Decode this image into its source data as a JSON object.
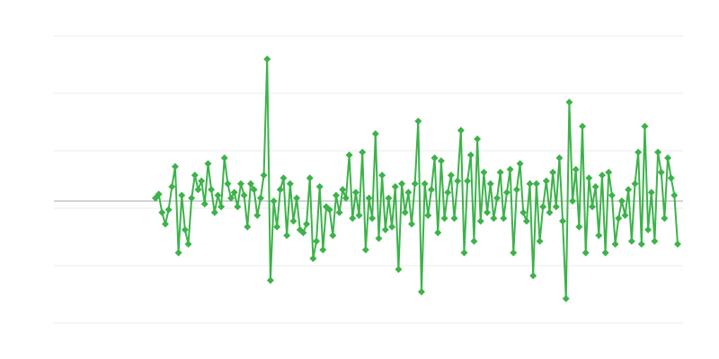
{
  "chart_data": {
    "type": "line",
    "title": "",
    "xlabel": "",
    "ylabel": "",
    "marker": "diamond",
    "grid": true,
    "zero_line": true,
    "ylim": [
      -2.125,
      2.875
    ],
    "gridlines": [
      2.875,
      1.875,
      0.875,
      -0.125,
      -1.125,
      -2.125
    ],
    "colors": {
      "series": "#3cb34a",
      "grid": "#ebebeb",
      "zero_line": "#aaaaaa"
    },
    "series": [
      {
        "values": [
          0.05,
          0.12,
          -0.2,
          -0.4,
          -0.15,
          0.25,
          0.6,
          -0.9,
          0.1,
          -0.5,
          -0.75,
          0.05,
          0.45,
          0.2,
          0.35,
          -0.05,
          0.65,
          0.2,
          -0.2,
          0.1,
          -0.1,
          0.75,
          0.3,
          0.05,
          0.15,
          -0.1,
          0.3,
          0.1,
          -0.45,
          0.3,
          0.2,
          -0.25,
          0.05,
          0.45,
          2.47,
          -1.38,
          0.0,
          -0.45,
          0.2,
          0.4,
          -0.6,
          0.3,
          -0.35,
          0.05,
          -0.5,
          -0.55,
          -0.4,
          0.4,
          -1.0,
          -0.7,
          0.25,
          -0.85,
          -0.1,
          -0.15,
          -0.6,
          0.1,
          -0.2,
          0.2,
          0.05,
          0.8,
          -0.3,
          0.15,
          -0.25,
          0.85,
          -0.85,
          0.05,
          -0.3,
          1.17,
          -0.65,
          0.45,
          -0.5,
          0.05,
          -0.45,
          0.25,
          -1.19,
          0.3,
          -0.2,
          0.15,
          -0.4,
          0.3,
          1.39,
          -1.58,
          0.3,
          -0.25,
          0.2,
          0.75,
          -0.55,
          0.7,
          -0.3,
          0.15,
          0.45,
          -0.3,
          0.35,
          1.23,
          -0.9,
          0.35,
          0.8,
          -0.7,
          1.08,
          -0.35,
          0.5,
          -0.2,
          0.3,
          -0.3,
          0.05,
          0.5,
          -0.3,
          0.15,
          0.55,
          -0.9,
          0.2,
          0.65,
          -0.2,
          -0.35,
          0.3,
          -1.3,
          0.3,
          -0.7,
          -0.1,
          0.35,
          -0.2,
          0.5,
          -0.1,
          0.75,
          -0.35,
          -1.7,
          1.72,
          0.0,
          0.55,
          -0.45,
          1.3,
          -0.9,
          0.4,
          -0.1,
          0.25,
          -0.6,
          0.45,
          -0.9,
          0.5,
          0.1,
          -0.75,
          -0.3,
          0.0,
          -0.25,
          0.2,
          -0.7,
          0.3,
          0.85,
          -0.75,
          1.3,
          -0.5,
          0.15,
          -0.7,
          0.85,
          0.5,
          -0.3,
          0.75,
          0.4,
          0.1,
          -0.75
        ]
      }
    ]
  }
}
